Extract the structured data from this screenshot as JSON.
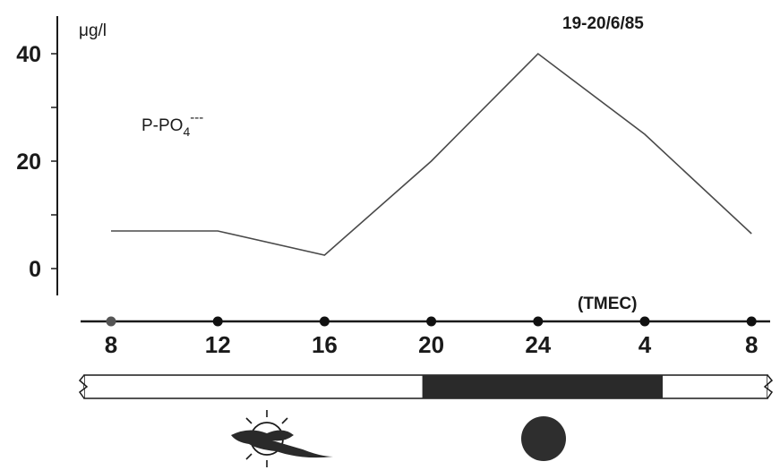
{
  "chart_data": {
    "type": "line",
    "title": "19-20/6/85",
    "ylabel": "μg/l",
    "series_label": "P-PO4---",
    "series_label_main": "P-PO",
    "series_label_sub": "4",
    "series_label_sup": "---",
    "xlabel": "(TMEC)",
    "ylim": [
      0,
      45
    ],
    "yticks": [
      0,
      20,
      40
    ],
    "x_ticks": [
      "8",
      "12",
      "16",
      "20",
      "24",
      "4",
      "8"
    ],
    "series": [
      {
        "values": [
          7,
          7,
          2.5,
          20,
          40,
          25,
          6.5
        ]
      }
    ],
    "light_period": {
      "day_start": "8",
      "dark_start": "20",
      "dark_end": "4"
    },
    "colors": {
      "line": "#4a4a4a",
      "axis": "#1a1a1a",
      "dark_bar": "#2a2a2a",
      "moon": "#2e2e2e"
    },
    "icons": {
      "day": "sun-cloud-icon",
      "night": "moon-icon"
    }
  }
}
